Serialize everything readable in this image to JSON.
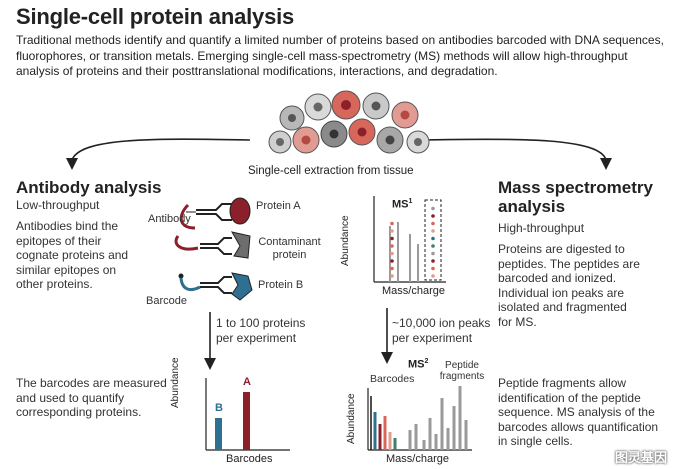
{
  "title": "Single-cell protein analysis",
  "intro": "Traditional methods identify and quantify a limited number of proteins based on antibodies barcoded with DNA sequences, fluorophores, or transition metals. Emerging single-cell mass-spectrometry (MS) methods will allow high-throughput analysis of proteins and their posttranslational modifications, interactions, and degradation.",
  "cells_label": "Single-cell extraction from tissue",
  "antibody": {
    "title": "Antibody analysis",
    "subtitle": "Low-throughput",
    "body": "Antibodies bind the epitopes of their cognate proteins and similar epitopes on other proteins.",
    "label_antibody": "Antibody",
    "label_protein_a": "Protein A",
    "label_contaminant": "Contaminant protein",
    "label_barcode": "Barcode",
    "label_protein_b": "Protein B",
    "arrow_label": "1 to 100 proteins per experiment",
    "bottom_text": "The barcodes are measured and used to quantify corresponding proteins.",
    "chart_ylabel": "Abundance",
    "chart_xlabel": "Barcodes",
    "bar_b": "B",
    "bar_a": "A"
  },
  "ms": {
    "title": "Mass spectrometry analysis",
    "subtitle": "High-throughput",
    "body": "Proteins are digested to peptides. The peptides are barcoded and ionized. Individual ion peaks are isolated and fragmented for MS.",
    "ms1_label": "MS",
    "ms1_sup": "1",
    "ms2_label": "MS",
    "ms2_sup": "2",
    "chart1_ylabel": "Abundance",
    "chart1_xlabel": "Mass/charge",
    "arrow_label": "~10,000 ion peaks per experiment",
    "chart2_ylabel": "Abundance",
    "chart2_xlabel": "Mass/charge",
    "barcodes_label": "Barcodes",
    "fragments_label": "Peptide fragments",
    "bottom_text": "Peptide fragments allow identification of the peptide sequence. MS analysis of the barcodes allows quantification in single cells."
  },
  "watermark": "图灵基因",
  "colors": {
    "red": "#8b1f2a",
    "teal": "#2f6f8f",
    "gray": "#9a9a9a",
    "pink": "#e29b92",
    "salmon": "#d7675a",
    "green": "#3f7d6e"
  }
}
